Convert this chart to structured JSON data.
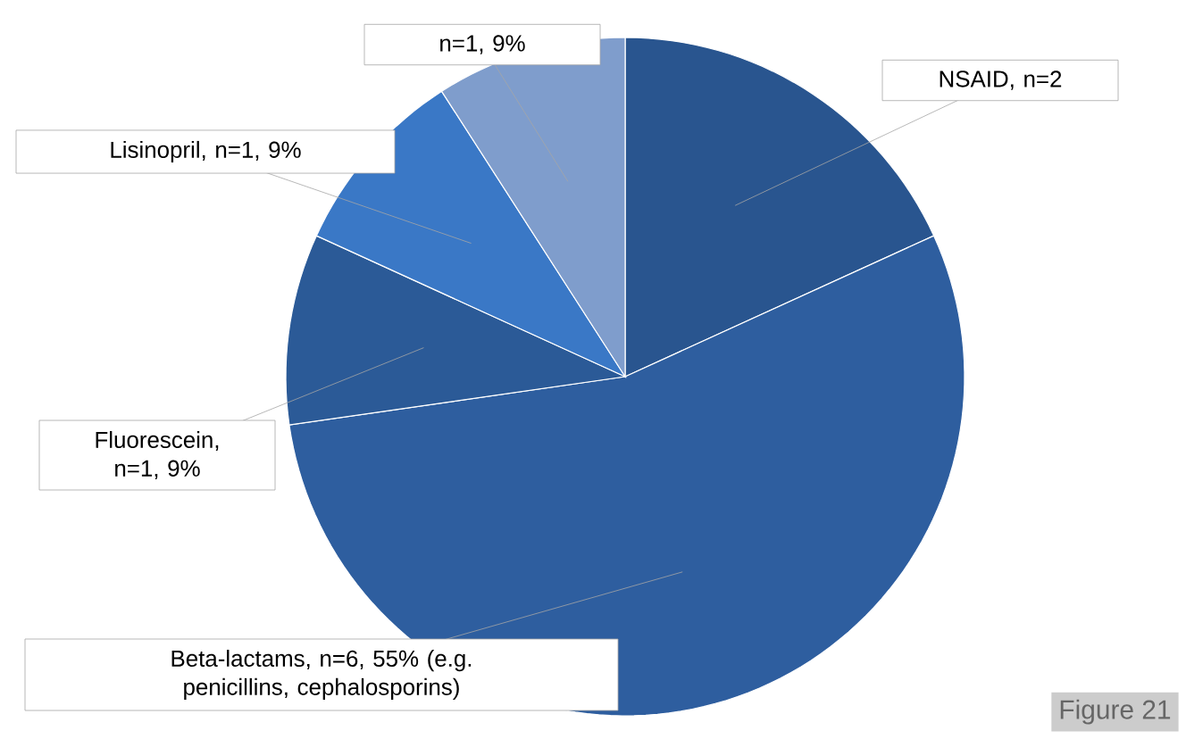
{
  "chart_data": {
    "type": "pie",
    "categories": [
      "NSAID, n=2",
      "Beta-lactams, n=6, 55% (e.g. penicillins, cephalosporins)",
      "Fluorescein, n=1, 9%",
      "Lisinopril, n=1, 9%",
      "n=1, 9%"
    ],
    "values": [
      2,
      6,
      1,
      1,
      1
    ],
    "colors": [
      "#29558f",
      "#2e5e9f",
      "#2b5a97",
      "#3a78c6",
      "#7f9dcc"
    ],
    "annotations": [
      "Figure 21"
    ]
  }
}
